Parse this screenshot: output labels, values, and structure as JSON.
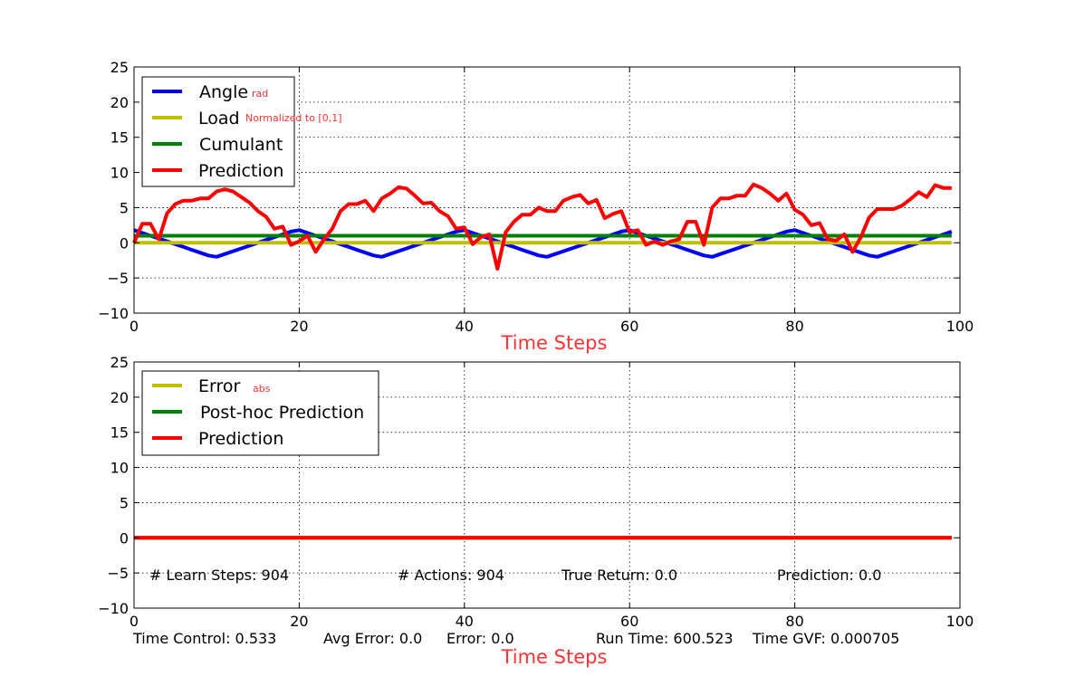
{
  "colors": {
    "blue": "#0000ff",
    "yellow": "#bfbf00",
    "green": "#008000",
    "red": "#ff0000",
    "axis_label": "#ff3333"
  },
  "chart_data": [
    {
      "type": "line",
      "xlabel": "Time Steps",
      "xlim": [
        0,
        100
      ],
      "ylim": [
        -10,
        25
      ],
      "xticks": [
        "0",
        "20",
        "40",
        "60",
        "80",
        "100"
      ],
      "yticks": [
        "25",
        "20",
        "15",
        "10",
        "5",
        "0",
        "−5",
        "−10"
      ],
      "grid": true,
      "legend_position": "upper-left",
      "x": [
        0,
        1,
        2,
        3,
        4,
        5,
        6,
        7,
        8,
        9,
        10,
        11,
        12,
        13,
        14,
        15,
        16,
        17,
        18,
        19,
        20,
        21,
        22,
        23,
        24,
        25,
        26,
        27,
        28,
        29,
        30,
        31,
        32,
        33,
        34,
        35,
        36,
        37,
        38,
        39,
        40,
        41,
        42,
        43,
        44,
        45,
        46,
        47,
        48,
        49,
        50,
        51,
        52,
        53,
        54,
        55,
        56,
        57,
        58,
        59,
        60,
        61,
        62,
        63,
        64,
        65,
        66,
        67,
        68,
        69,
        70,
        71,
        72,
        73,
        74,
        75,
        76,
        77,
        78,
        79,
        80,
        81,
        82,
        83,
        84,
        85,
        86,
        87,
        88,
        89,
        90,
        91,
        92,
        93,
        94,
        95,
        96,
        97,
        98,
        99
      ],
      "series": [
        {
          "name": "Angle",
          "subscript": "rad",
          "color": "#0000ff",
          "values": [
            1.8,
            1.4,
            1.0,
            0.6,
            0.2,
            -0.2,
            -0.6,
            -1.0,
            -1.4,
            -1.8,
            -2.0,
            -1.6,
            -1.2,
            -0.8,
            -0.4,
            0.0,
            0.4,
            0.8,
            1.2,
            1.6,
            1.8,
            1.4,
            1.0,
            0.6,
            0.2,
            -0.2,
            -0.6,
            -1.0,
            -1.4,
            -1.8,
            -2.0,
            -1.6,
            -1.2,
            -0.8,
            -0.4,
            0.0,
            0.4,
            0.8,
            1.2,
            1.6,
            1.8,
            1.4,
            1.0,
            0.6,
            0.2,
            -0.2,
            -0.6,
            -1.0,
            -1.4,
            -1.8,
            -2.0,
            -1.6,
            -1.2,
            -0.8,
            -0.4,
            0.0,
            0.4,
            0.8,
            1.2,
            1.6,
            1.8,
            1.4,
            1.0,
            0.6,
            0.2,
            -0.2,
            -0.6,
            -1.0,
            -1.4,
            -1.8,
            -2.0,
            -1.6,
            -1.2,
            -0.8,
            -0.4,
            0.0,
            0.4,
            0.8,
            1.2,
            1.6,
            1.8,
            1.4,
            1.0,
            0.6,
            0.2,
            -0.2,
            -0.6,
            -1.0,
            -1.4,
            -1.8,
            -2.0,
            -1.6,
            -1.2,
            -0.8,
            -0.4,
            0.0,
            0.4,
            0.8,
            1.2,
            1.6
          ]
        },
        {
          "name": "Load",
          "subscript": "Normalized to [0,1]",
          "color": "#bfbf00",
          "constant": 0.0
        },
        {
          "name": "Cumulant",
          "color": "#008000",
          "constant": 1.0
        },
        {
          "name": "Prediction",
          "color": "#ff0000",
          "values": [
            0.0,
            2.7,
            2.7,
            0.5,
            4.2,
            5.5,
            6.0,
            6.0,
            6.3,
            6.3,
            7.3,
            7.6,
            7.3,
            6.5,
            5.7,
            4.5,
            3.7,
            2.0,
            2.3,
            -0.3,
            0.2,
            1.0,
            -1.3,
            0.5,
            2.0,
            4.5,
            5.5,
            5.5,
            6.0,
            4.5,
            6.3,
            7.0,
            7.9,
            7.7,
            6.7,
            5.6,
            5.7,
            4.5,
            3.8,
            2.0,
            2.2,
            -0.2,
            0.8,
            1.2,
            -3.7,
            1.5,
            3.0,
            4.0,
            4.0,
            5.0,
            4.5,
            4.5,
            6.0,
            6.5,
            6.8,
            5.6,
            6.1,
            3.5,
            4.1,
            4.5,
            1.5,
            1.8,
            -0.3,
            0.2,
            -0.3,
            0.2,
            0.5,
            3.0,
            3.0,
            -0.3,
            5.0,
            6.3,
            6.3,
            6.7,
            6.7,
            8.3,
            7.8,
            7.0,
            6.0,
            7.0,
            4.7,
            4.0,
            2.5,
            2.8,
            0.5,
            0.3,
            1.2,
            -1.3,
            0.8,
            3.6,
            4.8,
            4.8,
            4.8,
            5.3,
            6.2,
            7.2,
            6.5,
            8.2,
            7.8,
            7.8
          ]
        }
      ]
    },
    {
      "type": "line",
      "xlabel": "Time Steps",
      "xlim": [
        0,
        100
      ],
      "ylim": [
        -10,
        25
      ],
      "xticks": [
        "0",
        "20",
        "40",
        "60",
        "80",
        "100"
      ],
      "yticks": [
        "25",
        "20",
        "15",
        "10",
        "5",
        "0",
        "−5",
        "−10"
      ],
      "grid": true,
      "legend_position": "upper-left",
      "x_range": [
        0,
        99
      ],
      "series": [
        {
          "name": "Error",
          "subscript": "abs",
          "color": "#bfbf00",
          "constant": 0.0
        },
        {
          "name": "Post-hoc Prediction",
          "color": "#008000",
          "constant": 0.0
        },
        {
          "name": "Prediction",
          "color": "#ff0000",
          "constant": 0.0
        }
      ],
      "annotations": {
        "learn_steps": "# Learn Steps: 904",
        "actions": "# Actions: 904",
        "true_return": "True Return: 0.0",
        "prediction": "Prediction: 0.0"
      }
    }
  ],
  "footer": {
    "time_control": "Time Control: 0.533",
    "avg_error": "Avg Error: 0.0",
    "error": "Error: 0.0",
    "run_time": "Run Time: 600.523",
    "time_gvf": "Time GVF: 0.000705"
  }
}
